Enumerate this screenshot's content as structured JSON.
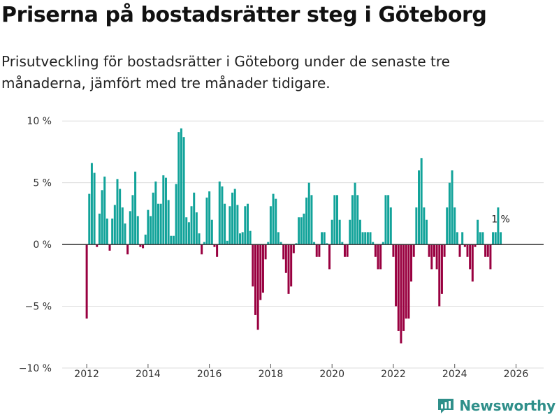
{
  "header": {
    "title": "Priserna på bostadsrätter steg i Göteborg",
    "subtitle": "Prisutveckling för bostadsrätter i Göteborg under de senaste tre månaderna, jämfört med tre månader tidigare."
  },
  "brand": {
    "name": "Newsworthy"
  },
  "colors": {
    "positive": "#12a39a",
    "negative": "#990040",
    "grid": "#dcdcdc",
    "zero_line": "#333333"
  },
  "chart_data": {
    "type": "bar",
    "title": "Priserna på bostadsrätter steg i Göteborg",
    "xlabel": "",
    "ylabel": "",
    "x_start": 2012.0,
    "x_step": 0.08333,
    "xlim": [
      2011.2,
      2026.9
    ],
    "ylim": [
      -10,
      11.2
    ],
    "x_ticks": [
      2012,
      2014,
      2016,
      2018,
      2020,
      2022,
      2024,
      2026
    ],
    "y_ticks": [
      {
        "value": 10,
        "label": "10 %"
      },
      {
        "value": 5,
        "label": "5 %"
      },
      {
        "value": 0,
        "label": "0 %"
      },
      {
        "value": -5,
        "label": "−5 %"
      },
      {
        "value": -10,
        "label": "−10 %"
      }
    ],
    "values": [
      -6.0,
      4.1,
      6.6,
      5.8,
      -0.2,
      2.5,
      4.4,
      5.5,
      2.1,
      -0.5,
      2.1,
      3.2,
      5.3,
      4.5,
      3.0,
      1.7,
      -0.8,
      2.7,
      4.0,
      5.9,
      2.3,
      -0.2,
      -0.3,
      0.8,
      2.8,
      2.3,
      4.2,
      5.1,
      3.3,
      3.3,
      5.6,
      5.4,
      3.6,
      0.7,
      0.7,
      4.9,
      9.1,
      9.4,
      8.7,
      2.2,
      1.8,
      3.1,
      4.2,
      2.6,
      0.9,
      -0.8,
      0.2,
      3.8,
      4.3,
      2.0,
      -0.2,
      -1.0,
      5.1,
      4.7,
      3.3,
      0.3,
      3.1,
      4.2,
      4.5,
      3.2,
      0.9,
      1.0,
      3.1,
      3.3,
      1.1,
      -3.4,
      -5.7,
      -6.9,
      -4.5,
      -3.9,
      -1.2,
      0.2,
      3.1,
      4.1,
      3.7,
      1.0,
      0.2,
      -1.2,
      -2.3,
      -4.0,
      -3.4,
      -0.7,
      0.1,
      2.2,
      2.2,
      2.5,
      3.8,
      5.0,
      4.0,
      0.2,
      -1.0,
      -1.0,
      1.0,
      1.0,
      0.1,
      -2.0,
      2.0,
      4.0,
      4.0,
      2.0,
      0.2,
      -1.0,
      -1.0,
      2.0,
      4.0,
      5.0,
      4.0,
      2.0,
      1.0,
      1.0,
      1.0,
      1.0,
      0.2,
      -1.0,
      -2.0,
      -2.0,
      0.2,
      4.0,
      4.0,
      3.0,
      -1.0,
      -5.0,
      -7.0,
      -8.0,
      -7.0,
      -6.0,
      -6.0,
      -3.0,
      -1.0,
      3.0,
      6.0,
      7.0,
      3.0,
      2.0,
      -1.0,
      -2.0,
      -1.0,
      -2.0,
      -5.0,
      -4.0,
      -1.0,
      3.0,
      5.0,
      6.0,
      3.0,
      1.0,
      -1.0,
      1.0,
      -0.2,
      -1.0,
      -2.0,
      -3.0,
      -0.2,
      2.0,
      1.0,
      1.0,
      -1.0,
      -1.0,
      -2.0,
      1.0,
      1.0,
      3.0,
      1.0
    ],
    "annotation": {
      "text": "1 %"
    }
  }
}
